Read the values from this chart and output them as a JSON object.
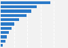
{
  "values": [
    100,
    73,
    62,
    52,
    37,
    28,
    22,
    16,
    12,
    9,
    4
  ],
  "bar_color": "#2979c8",
  "background_color": "#f2f2f2",
  "grid_color": "#ffffff",
  "figsize": [
    1.0,
    0.71
  ],
  "dpi": 100,
  "xlim": [
    0,
    135
  ],
  "bar_height": 0.72
}
